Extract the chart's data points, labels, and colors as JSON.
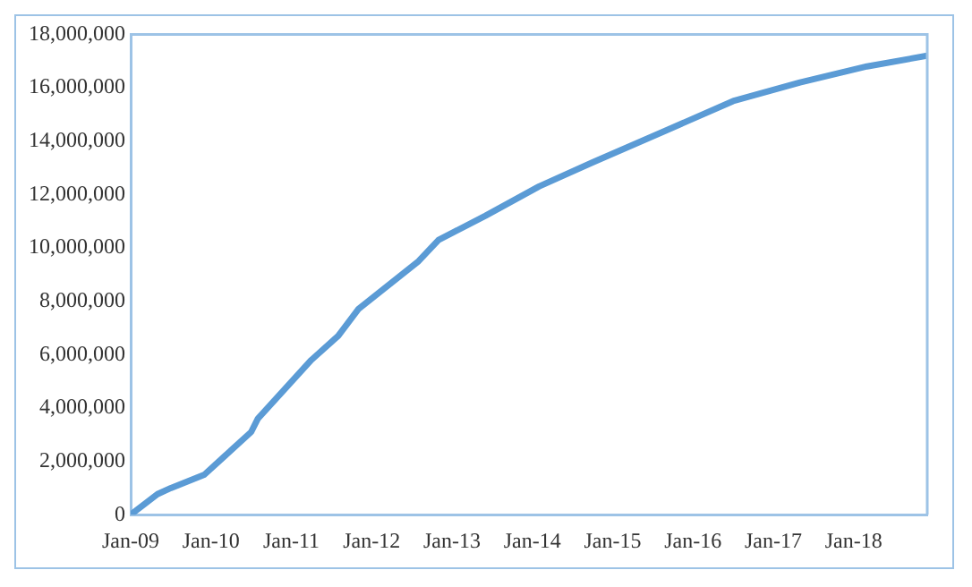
{
  "chart_data": {
    "type": "line",
    "x": [
      "2009-01",
      "2009-05",
      "2009-07",
      "2009-12",
      "2010-07",
      "2010-08",
      "2011-04",
      "2011-08",
      "2011-11",
      "2012-08",
      "2012-11",
      "2013-06",
      "2014-02",
      "2014-10",
      "2015-09",
      "2016-07",
      "2017-05",
      "2018-03",
      "2018-12"
    ],
    "series": [
      {
        "color": "#5b9bd5",
        "values": [
          0,
          770000,
          1000000,
          1500000,
          3100000,
          3600000,
          5800000,
          6700000,
          7700000,
          9500000,
          10300000,
          11200000,
          12300000,
          13200000,
          14400000,
          15500000,
          16200000,
          16800000,
          17200000
        ]
      }
    ],
    "xlim": [
      "2009-01",
      "2018-12"
    ],
    "xticks": [
      {
        "value": "2009-01",
        "label": "Jan-09"
      },
      {
        "value": "2010-01",
        "label": "Jan-10"
      },
      {
        "value": "2011-01",
        "label": "Jan-11"
      },
      {
        "value": "2012-01",
        "label": "Jan-12"
      },
      {
        "value": "2013-01",
        "label": "Jan-13"
      },
      {
        "value": "2014-01",
        "label": "Jan-14"
      },
      {
        "value": "2015-01",
        "label": "Jan-15"
      },
      {
        "value": "2016-01",
        "label": "Jan-16"
      },
      {
        "value": "2017-01",
        "label": "Jan-17"
      },
      {
        "value": "2018-01",
        "label": "Jan-18"
      }
    ],
    "ylim": [
      0,
      18000000
    ],
    "yticks": [
      0,
      {
        "value": 2000000,
        "label": "2,000,000"
      },
      {
        "value": 4000000,
        "label": "4,000,000"
      },
      {
        "value": 6000000,
        "label": "6,000,000"
      },
      {
        "value": 8000000,
        "label": "8,000,000"
      },
      {
        "value": 10000000,
        "label": "10,000,000"
      },
      {
        "value": 12000000,
        "label": "12,000,000"
      },
      {
        "value": 14000000,
        "label": "14,000,000"
      },
      {
        "value": 16000000,
        "label": "16,000,000"
      },
      {
        "value": 18000000,
        "label": "18,000,000"
      }
    ],
    "grid": false,
    "legend": false,
    "marker": "none",
    "line_style": "solid"
  }
}
